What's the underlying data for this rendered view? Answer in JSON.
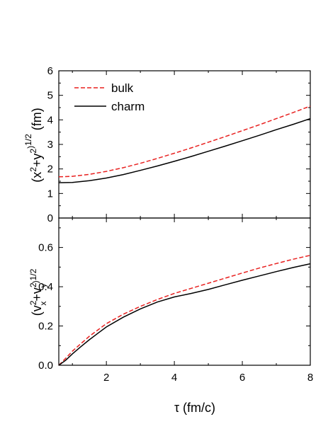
{
  "chart_data": [
    {
      "type": "line",
      "panel": "top",
      "ylabel": "(x²+y²)^1/2 (fm)",
      "xlim": [
        0.6,
        8
      ],
      "ylim": [
        0,
        6
      ],
      "yticks": [
        0,
        1,
        2,
        3,
        4,
        5,
        6
      ],
      "legend": {
        "placement": "top-left"
      },
      "series": [
        {
          "name": "bulk",
          "color": "#e8201f",
          "dash": "dashed",
          "x": [
            0.6,
            1,
            1.5,
            2,
            2.5,
            3,
            3.5,
            4,
            4.5,
            5,
            5.5,
            6,
            6.5,
            7,
            7.5,
            8
          ],
          "y": [
            1.68,
            1.7,
            1.78,
            1.9,
            2.05,
            2.23,
            2.43,
            2.64,
            2.86,
            3.09,
            3.32,
            3.56,
            3.8,
            4.05,
            4.3,
            4.56
          ]
        },
        {
          "name": "charm",
          "color": "#000000",
          "dash": "solid",
          "x": [
            0.6,
            1,
            1.5,
            2,
            2.5,
            3,
            3.5,
            4,
            4.5,
            5,
            5.5,
            6,
            6.5,
            7,
            7.5,
            8
          ],
          "y": [
            1.44,
            1.45,
            1.52,
            1.63,
            1.77,
            1.94,
            2.12,
            2.31,
            2.51,
            2.72,
            2.93,
            3.15,
            3.37,
            3.6,
            3.82,
            4.05
          ]
        }
      ]
    },
    {
      "type": "line",
      "panel": "bottom",
      "xlabel": "τ (fm/c)",
      "ylabel": "(vₓ²+v_y²)^1/2",
      "xlim": [
        0.6,
        8
      ],
      "ylim": [
        0,
        0.75
      ],
      "xticks": [
        2,
        4,
        6,
        8
      ],
      "yticks": [
        0.0,
        0.2,
        0.4,
        0.6
      ],
      "series": [
        {
          "name": "bulk",
          "color": "#e8201f",
          "dash": "dashed",
          "x": [
            0.6,
            0.8,
            1,
            1.25,
            1.5,
            1.75,
            2,
            2.5,
            3,
            3.5,
            4,
            4.5,
            5,
            5.5,
            6,
            6.5,
            7,
            7.5,
            8
          ],
          "y": [
            0.0,
            0.035,
            0.072,
            0.11,
            0.148,
            0.18,
            0.212,
            0.26,
            0.3,
            0.335,
            0.366,
            0.392,
            0.418,
            0.444,
            0.47,
            0.495,
            0.518,
            0.54,
            0.56
          ]
        },
        {
          "name": "charm",
          "color": "#000000",
          "dash": "solid",
          "x": [
            0.6,
            0.8,
            1,
            1.25,
            1.5,
            1.75,
            2,
            2.5,
            3,
            3.5,
            4,
            4.5,
            5,
            5.5,
            6,
            6.5,
            7,
            7.5,
            8
          ],
          "y": [
            0.0,
            0.025,
            0.058,
            0.095,
            0.13,
            0.163,
            0.195,
            0.245,
            0.287,
            0.322,
            0.348,
            0.366,
            0.386,
            0.41,
            0.433,
            0.455,
            0.477,
            0.498,
            0.517
          ]
        }
      ]
    }
  ]
}
